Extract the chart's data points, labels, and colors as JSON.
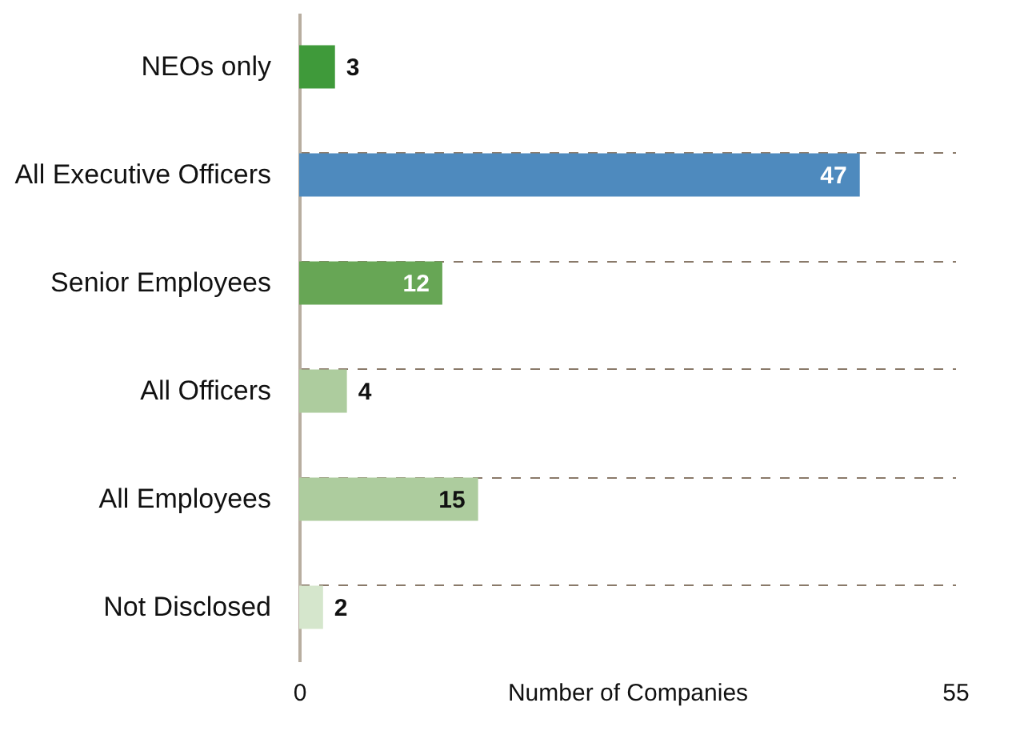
{
  "chart_data": {
    "type": "bar",
    "orientation": "horizontal",
    "categories": [
      "NEOs only",
      "All Executive Officers",
      "Senior Employees",
      "All Officers",
      "All Employees",
      "Not Disclosed"
    ],
    "values": [
      3,
      47,
      12,
      4,
      15,
      2
    ],
    "colors": [
      "#3f9a3a",
      "#4e8abe",
      "#67a655",
      "#adcc9e",
      "#adcc9e",
      "#d5e6cc"
    ],
    "xlabel": "Number of Companies",
    "xlim": [
      0,
      55
    ],
    "xticks": [
      0,
      55
    ],
    "data_labels": true,
    "grid": "y"
  }
}
